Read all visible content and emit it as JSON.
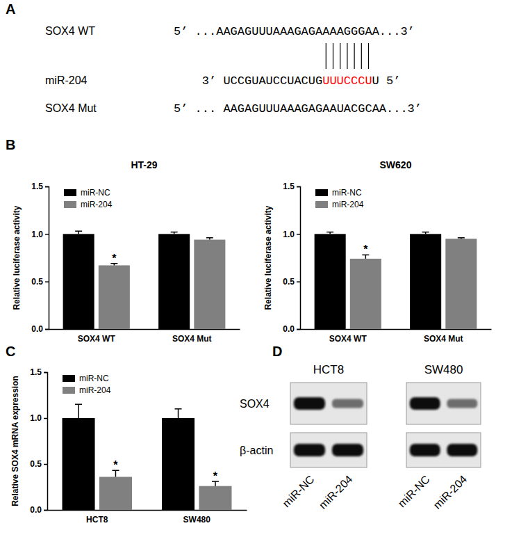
{
  "panel_labels": [
    "A",
    "B",
    "C",
    "D"
  ],
  "alignment": {
    "rows": [
      {
        "name": "SOX4 WT",
        "end5": "5’",
        "sequence": "...AAGAGUUUAAAGAGAAAAGGGAA...",
        "end3": "3’"
      },
      {
        "name": "miR-204",
        "end3": "3’",
        "sequence": "UCCGUAUCCUACUG",
        "seed": "UUUCCCU",
        "tail": "U",
        "end5": "5’"
      },
      {
        "name": "SOX4 Mut",
        "end5": "5’",
        "sequence": "... AAGAGUUUAAAGAGAAUACGCAA...",
        "end3": "3’"
      }
    ]
  },
  "chart_data": [
    {
      "type": "bar",
      "title": "HT-29",
      "ylabel": "Relative luciferase activity",
      "categories": [
        "SOX4 WT",
        "SOX4 Mut"
      ],
      "series": [
        {
          "name": "miR-NC",
          "color": "#000000",
          "values": [
            1.0,
            1.0
          ],
          "errors": [
            0.03,
            0.02
          ]
        },
        {
          "name": "miR-204",
          "color": "#808080",
          "values": [
            0.67,
            0.94
          ],
          "errors": [
            0.02,
            0.02
          ],
          "annotations": [
            "*",
            null
          ]
        }
      ],
      "ylim": [
        0,
        1.5
      ],
      "yticks": [
        {
          "value": 0,
          "label": "0.0"
        },
        0.5,
        {
          "value": 1,
          "label": "1.0"
        },
        1.5
      ],
      "legend": "upper left"
    },
    {
      "type": "bar",
      "title": "SW620",
      "ylabel": "Relative luciferase activity",
      "categories": [
        "SOX4 WT",
        "SOX4 Mut"
      ],
      "series": [
        {
          "name": "miR-NC",
          "color": "#000000",
          "values": [
            1.0,
            1.0
          ],
          "errors": [
            0.02,
            0.02
          ]
        },
        {
          "name": "miR-204",
          "color": "#808080",
          "values": [
            0.74,
            0.95
          ],
          "errors": [
            0.04,
            0.01
          ],
          "annotations": [
            "*",
            null
          ]
        }
      ],
      "ylim": [
        0,
        1.5
      ],
      "yticks": [
        {
          "value": 0,
          "label": "0.0"
        },
        0.5,
        {
          "value": 1,
          "label": "1.0"
        },
        1.5
      ],
      "legend": "upper left"
    },
    {
      "type": "bar",
      "ylabel": "Relative SOX4 mRNA expression",
      "categories": [
        "HCT8",
        "SW480"
      ],
      "series": [
        {
          "name": "miR-NC",
          "color": "#000000",
          "values": [
            1.0,
            1.0
          ],
          "errors": [
            0.15,
            0.1
          ]
        },
        {
          "name": "miR-204",
          "color": "#808080",
          "values": [
            0.36,
            0.26
          ],
          "errors": [
            0.07,
            0.05
          ],
          "annotations": [
            "*",
            "*"
          ]
        }
      ],
      "ylim": [
        0,
        1.5
      ],
      "yticks": [
        {
          "value": 0,
          "label": "0.0"
        },
        0.5,
        {
          "value": 1,
          "label": "1.0"
        },
        1.5
      ],
      "legend": "upper left"
    }
  ],
  "blot": {
    "rows": [
      "SOX4",
      "β-actin"
    ],
    "groups": [
      {
        "name": "HCT8",
        "lanes": [
          "miR-NC",
          "miR-204"
        ],
        "intensity": [
          [
            1,
            0.5
          ],
          [
            1,
            1
          ]
        ]
      },
      {
        "name": "SW480",
        "lanes": [
          "miR-NC",
          "miR-204"
        ],
        "intensity": [
          [
            1,
            0.5
          ],
          [
            1,
            1
          ]
        ]
      }
    ]
  }
}
